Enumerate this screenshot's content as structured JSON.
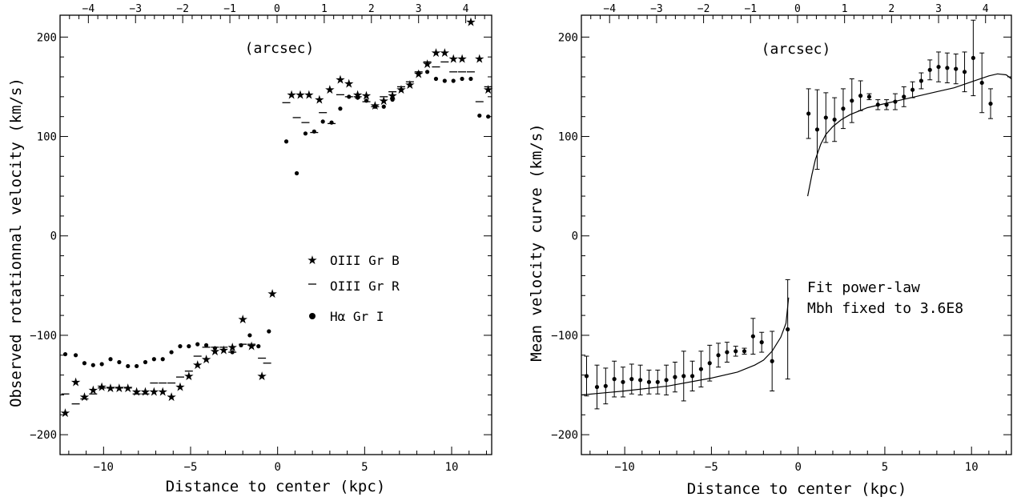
{
  "chart_data": [
    {
      "type": "scatter",
      "xlabel": "Distance to center (kpc)",
      "ylabel": "Observed rotationnal velocity (km/s)",
      "top_axis_label": "(arcsec)",
      "xlim": [
        -12.5,
        12.3
      ],
      "ylim": [
        -220,
        222
      ],
      "top_xlim": [
        -4.6,
        4.55
      ],
      "xticks": [
        -10,
        -5,
        0,
        5,
        10
      ],
      "yticks": [
        -200,
        -100,
        0,
        100,
        200
      ],
      "top_ticks": [
        -4,
        -3,
        -2,
        -1,
        0,
        1,
        2,
        3,
        4
      ],
      "legend_position": "center-right",
      "series": [
        {
          "name": "OIII Gr B",
          "marker": "star",
          "points": [
            [
              -12.2,
              -178
            ],
            [
              -11.6,
              -147
            ],
            [
              -11.1,
              -162
            ],
            [
              -10.6,
              -155
            ],
            [
              -10.1,
              -152
            ],
            [
              -9.6,
              -153
            ],
            [
              -9.1,
              -153
            ],
            [
              -8.6,
              -153
            ],
            [
              -8.1,
              -157
            ],
            [
              -7.6,
              -157
            ],
            [
              -7.1,
              -157
            ],
            [
              -6.6,
              -157
            ],
            [
              -6.1,
              -162
            ],
            [
              -5.6,
              -152
            ],
            [
              -5.1,
              -141
            ],
            [
              -4.6,
              -130
            ],
            [
              -4.1,
              -124
            ],
            [
              -3.6,
              -116
            ],
            [
              -3.1,
              -115
            ],
            [
              -2.6,
              -112
            ],
            [
              -2.0,
              -84
            ],
            [
              -1.5,
              -111
            ],
            [
              -0.9,
              -141
            ],
            [
              -0.3,
              -58
            ],
            [
              0.8,
              142
            ],
            [
              1.3,
              142
            ],
            [
              1.8,
              142
            ],
            [
              2.4,
              137
            ],
            [
              3.0,
              147
            ],
            [
              3.6,
              157
            ],
            [
              4.1,
              153
            ],
            [
              4.6,
              142
            ],
            [
              5.1,
              141
            ],
            [
              5.6,
              131
            ],
            [
              6.1,
              136
            ],
            [
              6.6,
              141
            ],
            [
              7.1,
              147
            ],
            [
              7.6,
              152
            ],
            [
              8.1,
              163
            ],
            [
              8.6,
              173
            ],
            [
              9.1,
              184
            ],
            [
              9.6,
              184
            ],
            [
              10.1,
              178
            ],
            [
              10.6,
              178
            ],
            [
              11.1,
              215
            ],
            [
              11.6,
              178
            ],
            [
              12.1,
              147
            ]
          ]
        },
        {
          "name": "OIII Gr R",
          "marker": "dash",
          "points": [
            [
              -12.2,
              -159
            ],
            [
              -11.6,
              -169
            ],
            [
              -11.1,
              -164
            ],
            [
              -10.6,
              -159
            ],
            [
              -10.1,
              -153
            ],
            [
              -9.6,
              -153
            ],
            [
              -9.1,
              -153
            ],
            [
              -8.6,
              -153
            ],
            [
              -8.1,
              -159
            ],
            [
              -7.6,
              -159
            ],
            [
              -7.1,
              -148
            ],
            [
              -6.6,
              -148
            ],
            [
              -6.1,
              -148
            ],
            [
              -5.6,
              -142
            ],
            [
              -5.1,
              -136
            ],
            [
              -4.6,
              -121
            ],
            [
              -4.1,
              -112
            ],
            [
              -3.6,
              -112
            ],
            [
              -3.1,
              -112
            ],
            [
              -2.6,
              -117
            ],
            [
              -2.0,
              -109
            ],
            [
              -1.5,
              -109
            ],
            [
              -0.9,
              -123
            ],
            [
              -0.6,
              -128
            ],
            [
              0.5,
              134
            ],
            [
              1.1,
              119
            ],
            [
              1.6,
              114
            ],
            [
              2.1,
              104
            ],
            [
              2.6,
              124
            ],
            [
              3.1,
              113
            ],
            [
              3.6,
              142
            ],
            [
              4.1,
              140
            ],
            [
              4.6,
              140
            ],
            [
              5.1,
              135
            ],
            [
              5.6,
              130
            ],
            [
              6.1,
              140
            ],
            [
              6.6,
              145
            ],
            [
              7.1,
              150
            ],
            [
              7.6,
              155
            ],
            [
              8.1,
              165
            ],
            [
              8.6,
              175
            ],
            [
              9.1,
              170
            ],
            [
              9.6,
              175
            ],
            [
              10.1,
              165
            ],
            [
              10.6,
              165
            ],
            [
              11.1,
              165
            ],
            [
              11.6,
              135
            ],
            [
              12.1,
              150
            ]
          ]
        },
        {
          "name": "Hα Gr I",
          "marker": "dot",
          "points": [
            [
              -12.2,
              -119
            ],
            [
              -11.6,
              -120
            ],
            [
              -11.1,
              -128
            ],
            [
              -10.6,
              -130
            ],
            [
              -10.1,
              -129
            ],
            [
              -9.6,
              -124
            ],
            [
              -9.1,
              -127
            ],
            [
              -8.6,
              -131
            ],
            [
              -8.1,
              -131
            ],
            [
              -7.6,
              -127
            ],
            [
              -7.1,
              -124
            ],
            [
              -6.6,
              -124
            ],
            [
              -6.1,
              -117
            ],
            [
              -5.6,
              -111
            ],
            [
              -5.1,
              -111
            ],
            [
              -4.6,
              -109
            ],
            [
              -4.1,
              -110
            ],
            [
              -3.6,
              -113
            ],
            [
              -3.1,
              -115
            ],
            [
              -2.6,
              -117
            ],
            [
              -2.1,
              -110
            ],
            [
              -1.6,
              -100
            ],
            [
              -1.1,
              -111
            ],
            [
              -0.5,
              -96
            ],
            [
              0.5,
              95
            ],
            [
              1.1,
              63
            ],
            [
              1.6,
              103
            ],
            [
              2.1,
              105
            ],
            [
              2.6,
              115
            ],
            [
              3.1,
              114
            ],
            [
              3.6,
              128
            ],
            [
              4.1,
              140
            ],
            [
              4.6,
              139
            ],
            [
              5.1,
              136
            ],
            [
              5.6,
              130
            ],
            [
              6.1,
              130
            ],
            [
              6.6,
              137
            ],
            [
              7.1,
              147
            ],
            [
              7.6,
              152
            ],
            [
              8.1,
              164
            ],
            [
              8.6,
              165
            ],
            [
              9.1,
              158
            ],
            [
              9.6,
              156
            ],
            [
              10.1,
              156
            ],
            [
              10.6,
              158
            ],
            [
              11.1,
              158
            ],
            [
              11.6,
              121
            ],
            [
              12.1,
              120
            ]
          ]
        }
      ]
    },
    {
      "type": "scatter",
      "xlabel": "Distance to center (kpc)",
      "ylabel": "Mean velocity curve (km/s)",
      "top_axis_label": "(arcsec)",
      "annotation": [
        "Fit power-law",
        "Mbh fixed to 3.6E8"
      ],
      "xlim": [
        -12.5,
        12.3
      ],
      "ylim": [
        -220,
        222
      ],
      "top_xlim": [
        -4.6,
        4.55
      ],
      "xticks": [
        -10,
        -5,
        0,
        5,
        10
      ],
      "yticks": [
        -200,
        -100,
        0,
        100,
        200
      ],
      "top_ticks": [
        -4,
        -3,
        -2,
        -1,
        0,
        1,
        2,
        3,
        4
      ],
      "series": [
        {
          "marker": "dot-errorbar",
          "points": [
            [
              -12.2,
              -141,
              20
            ],
            [
              -11.6,
              -152,
              22
            ],
            [
              -11.1,
              -151,
              18
            ],
            [
              -10.6,
              -144,
              18
            ],
            [
              -10.1,
              -147,
              15
            ],
            [
              -9.6,
              -144,
              15
            ],
            [
              -9.1,
              -145,
              15
            ],
            [
              -8.6,
              -147,
              12
            ],
            [
              -8.1,
              -147,
              12
            ],
            [
              -7.6,
              -145,
              15
            ],
            [
              -7.1,
              -142,
              15
            ],
            [
              -6.6,
              -141,
              25
            ],
            [
              -6.1,
              -141,
              15
            ],
            [
              -5.6,
              -134,
              18
            ],
            [
              -5.1,
              -128,
              18
            ],
            [
              -4.6,
              -120,
              12
            ],
            [
              -4.1,
              -117,
              10
            ],
            [
              -3.6,
              -116,
              5
            ],
            [
              -3.1,
              -116,
              3
            ],
            [
              -2.6,
              -101,
              18
            ],
            [
              -2.1,
              -107,
              10
            ],
            [
              -1.5,
              -126,
              30
            ],
            [
              -0.6,
              -94,
              50
            ]
          ]
        },
        {
          "marker": "dot-errorbar",
          "points": [
            [
              0.6,
              123,
              25
            ],
            [
              1.1,
              107,
              40
            ],
            [
              1.6,
              119,
              25
            ],
            [
              2.1,
              117,
              22
            ],
            [
              2.6,
              128,
              20
            ],
            [
              3.1,
              136,
              22
            ],
            [
              3.6,
              141,
              15
            ],
            [
              4.1,
              140,
              3
            ],
            [
              4.6,
              132,
              5
            ],
            [
              5.1,
              132,
              5
            ],
            [
              5.6,
              135,
              8
            ],
            [
              6.1,
              140,
              10
            ],
            [
              6.6,
              147,
              8
            ],
            [
              7.1,
              156,
              8
            ],
            [
              7.6,
              167,
              10
            ],
            [
              8.1,
              170,
              15
            ],
            [
              8.6,
              169,
              15
            ],
            [
              9.1,
              168,
              15
            ],
            [
              9.6,
              165,
              20
            ],
            [
              10.1,
              179,
              38
            ],
            [
              10.6,
              154,
              30
            ],
            [
              11.1,
              133,
              15
            ]
          ]
        },
        {
          "name": "Fit power-law",
          "marker": "line",
          "negative_branch": [
            [
              -12.5,
              -160
            ],
            [
              -10,
              -156
            ],
            [
              -7.5,
              -151
            ],
            [
              -5,
              -143
            ],
            [
              -3.5,
              -137
            ],
            [
              -2.5,
              -130
            ],
            [
              -2.0,
              -125
            ],
            [
              -1.5,
              -116
            ],
            [
              -1.0,
              -102
            ],
            [
              -0.7,
              -88
            ],
            [
              -0.55,
              -62
            ]
          ],
          "positive_branch": [
            [
              0.55,
              40
            ],
            [
              0.8,
              62
            ],
            [
              1.0,
              77
            ],
            [
              1.3,
              92
            ],
            [
              1.6,
              102
            ],
            [
              2.0,
              110
            ],
            [
              2.5,
              117
            ],
            [
              3.0,
              122
            ],
            [
              4.0,
              129
            ],
            [
              5.0,
              133
            ],
            [
              6.0,
              137
            ],
            [
              7.0,
              141
            ],
            [
              8.0,
              145
            ],
            [
              9.0,
              149
            ],
            [
              10.0,
              155
            ],
            [
              11.0,
              161
            ],
            [
              11.5,
              163
            ],
            [
              12.0,
              162
            ],
            [
              12.3,
              158
            ]
          ]
        }
      ]
    }
  ]
}
